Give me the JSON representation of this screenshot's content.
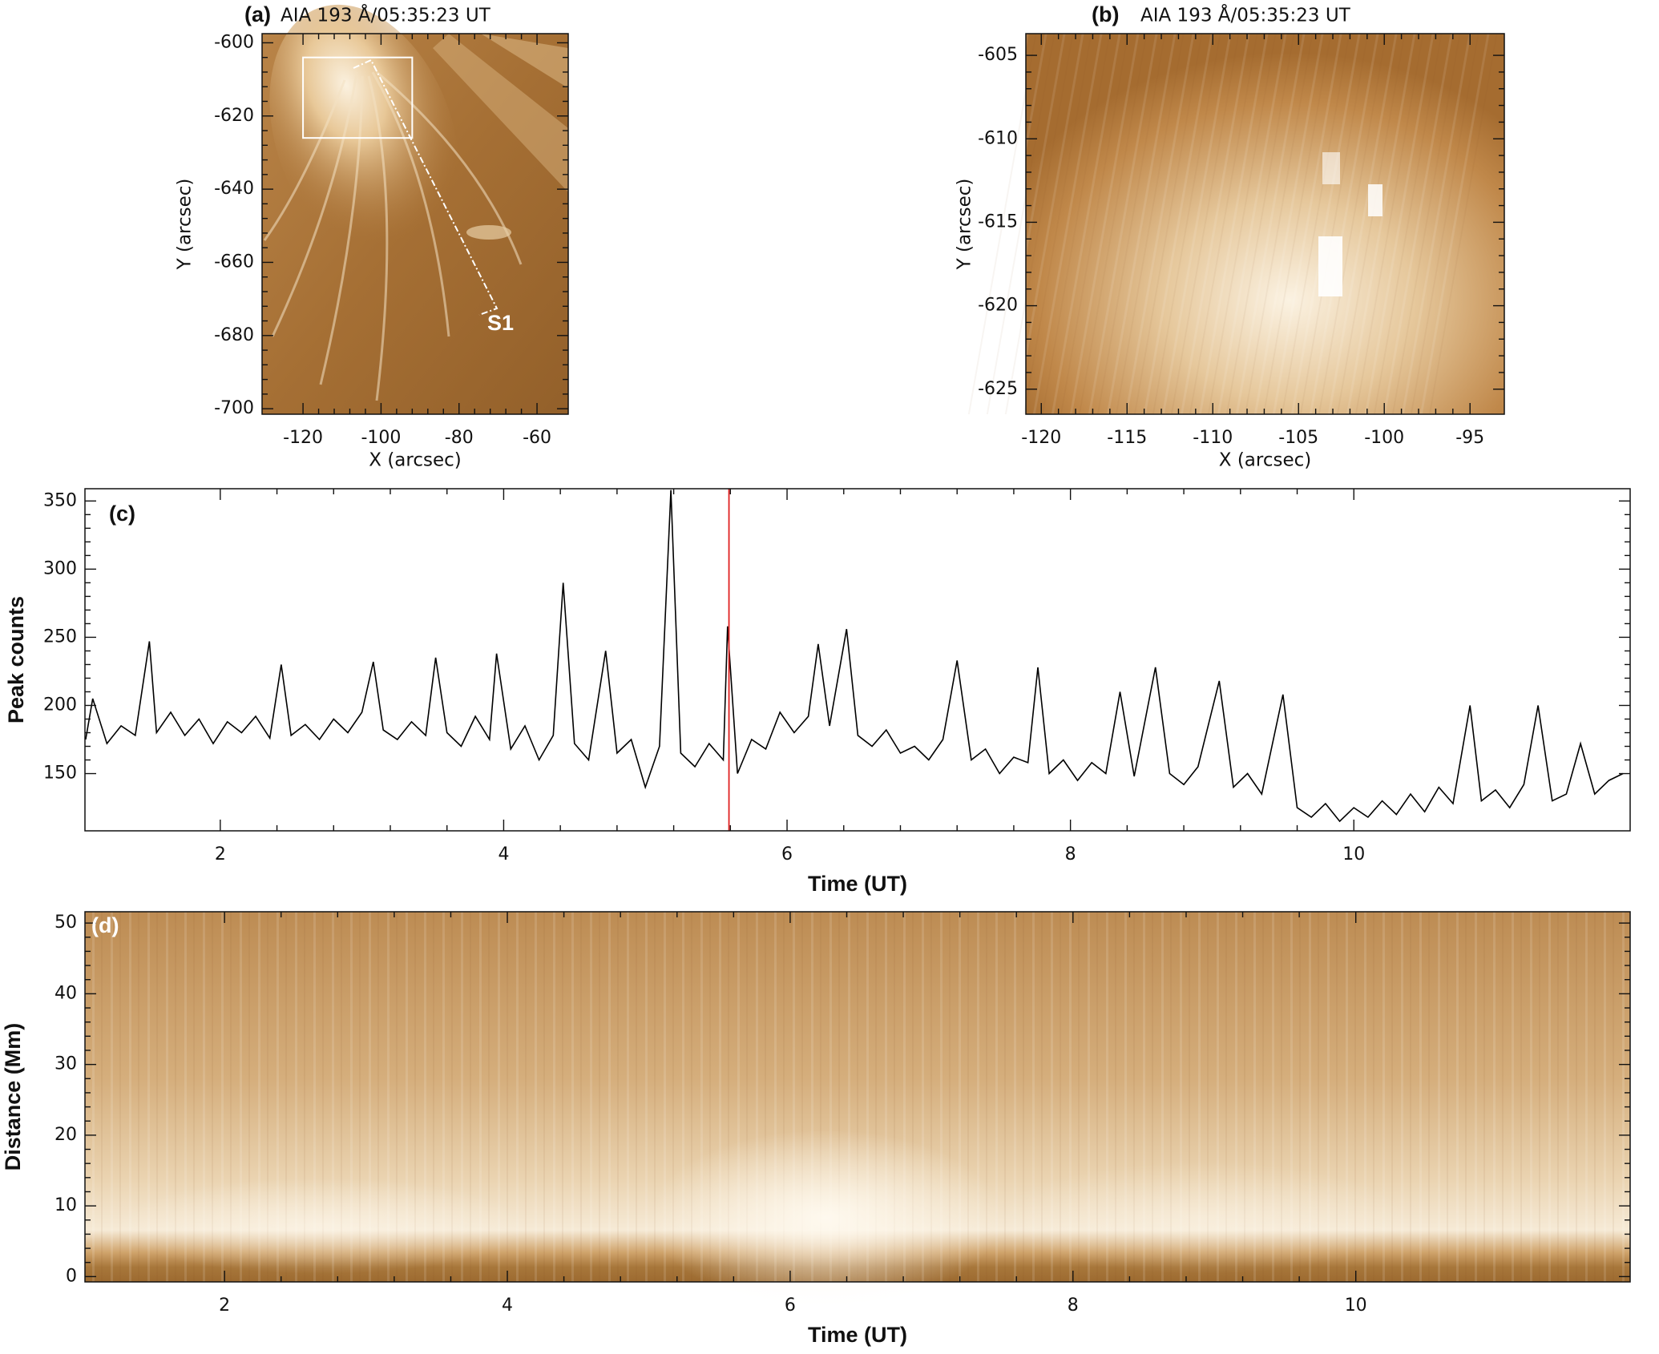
{
  "chart_data": [
    {
      "type": "image",
      "label": "(a)",
      "title": "AIA 193 Å/05:35:23 UT",
      "xlabel": "X (arcsec)",
      "ylabel": "Y (arcsec)",
      "xlim": [
        -130.5,
        -52
      ],
      "ylim": [
        -701.5,
        -597.5
      ],
      "xticks": [
        -120,
        -100,
        -80,
        -60
      ],
      "yticks": [
        -700,
        -680,
        -660,
        -640,
        -620,
        -600
      ],
      "box_x": [
        -120,
        -92
      ],
      "box_y": [
        -626,
        -604
      ],
      "annotation": "S1"
    },
    {
      "type": "image",
      "label": "(b)",
      "title": "AIA 193 Å/05:35:23 UT",
      "xlabel": "X (arcsec)",
      "ylabel": "Y (arcsec)",
      "xlim": [
        -120.9,
        -93
      ],
      "ylim": [
        -626.5,
        -603.7
      ],
      "xticks": [
        -120,
        -115,
        -110,
        -105,
        -100,
        -95
      ],
      "yticks": [
        -625,
        -620,
        -615,
        -610,
        -605
      ]
    },
    {
      "type": "line",
      "label": "(c)",
      "xlabel": "Time (UT)",
      "ylabel": "Peak counts",
      "color": "#000000",
      "xlim": [
        1.045,
        11.95
      ],
      "ylim": [
        108,
        359
      ],
      "xticks": [
        2,
        4,
        6,
        8,
        10
      ],
      "yticks": [
        150,
        200,
        250,
        300,
        350
      ],
      "marker_x": 5.59,
      "marker_color": "#e02020",
      "x": [
        1.05,
        1.1,
        1.2,
        1.3,
        1.4,
        1.5,
        1.55,
        1.65,
        1.75,
        1.85,
        1.95,
        2.05,
        2.15,
        2.25,
        2.35,
        2.43,
        2.5,
        2.6,
        2.7,
        2.8,
        2.9,
        3.0,
        3.08,
        3.15,
        3.25,
        3.35,
        3.45,
        3.52,
        3.6,
        3.7,
        3.8,
        3.9,
        3.95,
        4.05,
        4.15,
        4.25,
        4.35,
        4.42,
        4.5,
        4.6,
        4.72,
        4.8,
        4.9,
        5.0,
        5.1,
        5.18,
        5.25,
        5.35,
        5.45,
        5.55,
        5.58,
        5.65,
        5.75,
        5.85,
        5.95,
        6.05,
        6.15,
        6.22,
        6.3,
        6.42,
        6.5,
        6.6,
        6.7,
        6.8,
        6.9,
        7.0,
        7.1,
        7.2,
        7.3,
        7.4,
        7.5,
        7.6,
        7.7,
        7.77,
        7.85,
        7.95,
        8.05,
        8.15,
        8.25,
        8.35,
        8.45,
        8.6,
        8.7,
        8.8,
        8.9,
        9.05,
        9.15,
        9.25,
        9.35,
        9.5,
        9.6,
        9.7,
        9.8,
        9.9,
        10.0,
        10.1,
        10.2,
        10.3,
        10.4,
        10.5,
        10.6,
        10.7,
        10.82,
        10.9,
        11.0,
        11.1,
        11.2,
        11.3,
        11.4,
        11.5,
        11.6,
        11.7,
        11.8,
        11.9
      ],
      "values": [
        175,
        205,
        172,
        185,
        178,
        247,
        180,
        195,
        178,
        190,
        172,
        188,
        180,
        192,
        176,
        230,
        178,
        186,
        175,
        190,
        180,
        195,
        232,
        182,
        175,
        188,
        178,
        235,
        180,
        170,
        192,
        175,
        238,
        168,
        185,
        160,
        178,
        290,
        172,
        160,
        240,
        165,
        175,
        140,
        170,
        358,
        165,
        155,
        172,
        160,
        258,
        150,
        175,
        168,
        195,
        180,
        192,
        245,
        185,
        256,
        178,
        170,
        182,
        165,
        170,
        160,
        175,
        233,
        160,
        168,
        150,
        162,
        158,
        228,
        150,
        160,
        145,
        158,
        150,
        210,
        148,
        228,
        150,
        142,
        155,
        218,
        140,
        150,
        135,
        208,
        125,
        118,
        128,
        115,
        125,
        118,
        130,
        120,
        135,
        122,
        140,
        128,
        200,
        130,
        138,
        125,
        142,
        200,
        130,
        135,
        172,
        135,
        145,
        150
      ]
    },
    {
      "type": "image",
      "label": "(d)",
      "xlabel": "Time (UT)",
      "ylabel": "Distance (Mm)",
      "xlim": [
        1.013,
        11.94
      ],
      "ylim": [
        -0.75,
        51.6
      ],
      "xticks": [
        2,
        4,
        6,
        8,
        10
      ],
      "yticks": [
        0,
        10,
        20,
        30,
        40,
        50
      ]
    }
  ]
}
